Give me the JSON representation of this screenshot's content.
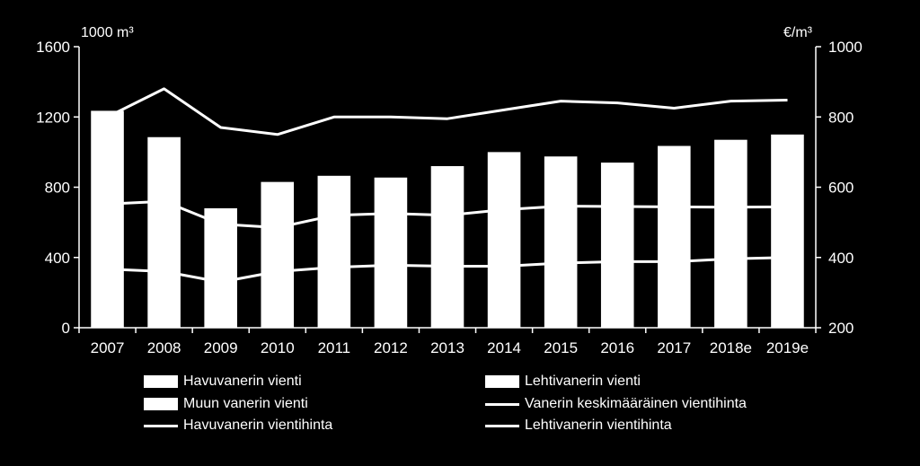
{
  "chart_data": {
    "type": "bar",
    "categories": [
      "2007",
      "2008",
      "2009",
      "2010",
      "2011",
      "2012",
      "2013",
      "2014",
      "2015",
      "2016",
      "2017",
      "2018e",
      "2019e"
    ],
    "left_unit": "1000 m³",
    "right_unit": "€/m³",
    "ylim_left": [
      0,
      1600
    ],
    "yticks_left": [
      "0",
      "400",
      "800",
      "1200",
      "1600"
    ],
    "ylim_right": [
      200,
      1000
    ],
    "yticks_right": [
      "200",
      "400",
      "600",
      "800",
      "1000"
    ],
    "bar_series": [
      {
        "name": "Havuvanerin vienti",
        "values": [
          1235,
          1085,
          680,
          830,
          865,
          855,
          920,
          1000,
          975,
          940,
          1035,
          1070,
          1100
        ]
      }
    ],
    "legend_only_series": [
      {
        "name": "Lehtivanerin vienti"
      },
      {
        "name": "Muun vanerin vienti"
      }
    ],
    "line_series": [
      {
        "name": "Lehtivanerin vientihinta",
        "axis": "right",
        "values": [
          800,
          880,
          770,
          750,
          800,
          800,
          795,
          820,
          845,
          840,
          825,
          845,
          848
        ]
      },
      {
        "name": "Vanerin keskimääräinen vientihinta",
        "axis": "right",
        "values": [
          552,
          560,
          495,
          485,
          520,
          525,
          520,
          536,
          546,
          545,
          544,
          543,
          544
        ]
      },
      {
        "name": "Havuvanerin vientihinta",
        "axis": "right",
        "values": [
          367,
          360,
          330,
          360,
          372,
          378,
          375,
          375,
          384,
          388,
          388,
          396,
          400
        ]
      }
    ],
    "legend": [
      {
        "label": "Havuvanerin vienti",
        "kind": "box"
      },
      {
        "label": "Lehtivanerin vienti",
        "kind": "box"
      },
      {
        "label": "Muun vanerin vienti",
        "kind": "box"
      },
      {
        "label": "Vanerin keskimääräinen vientihinta",
        "kind": "line"
      },
      {
        "label": "Havuvanerin vientihinta",
        "kind": "line"
      },
      {
        "label": "Lehtivanerin vientihinta",
        "kind": "line"
      }
    ],
    "colors": {
      "background": "#000000",
      "foreground": "#ffffff"
    }
  }
}
